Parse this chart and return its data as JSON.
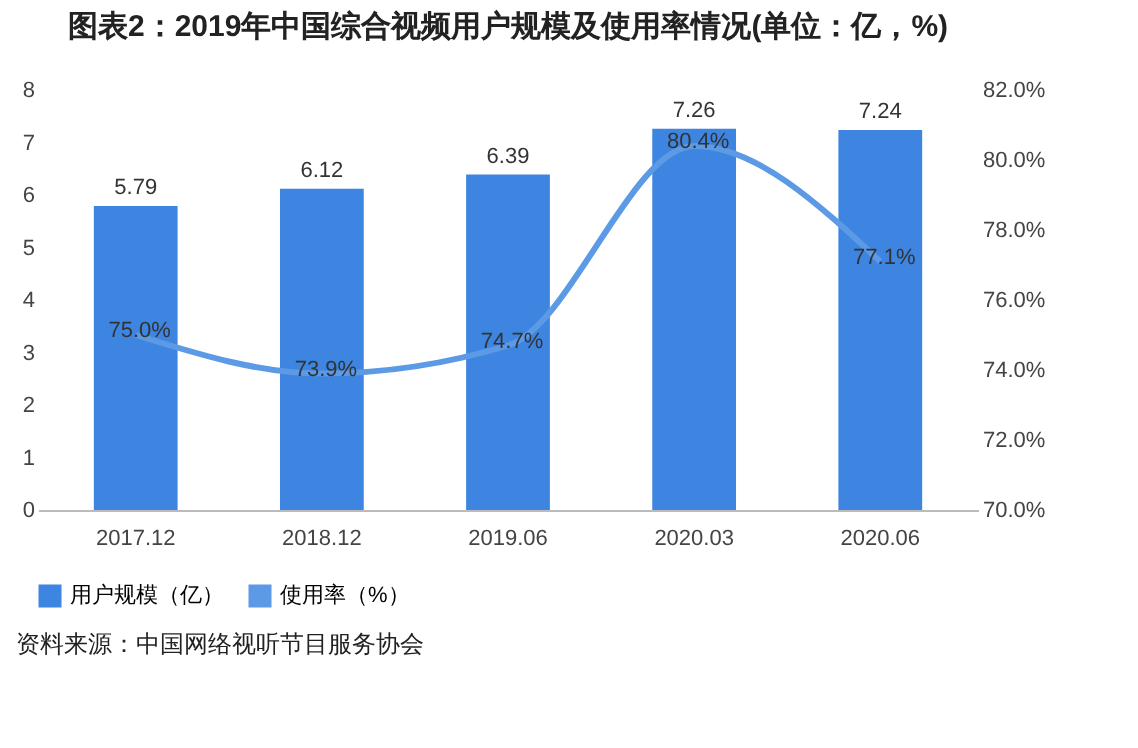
{
  "chart_data": {
    "type": "bar",
    "title": "图表2：2019年中国综合视频用户规模及使用率情况(单位：亿，%)",
    "categories": [
      "2017.12",
      "2018.12",
      "2019.06",
      "2020.03",
      "2020.06"
    ],
    "series": [
      {
        "name": "用户规模（亿）",
        "color": "#3d85e0",
        "values": [
          5.79,
          6.12,
          6.39,
          7.26,
          7.24
        ],
        "value_labels": [
          "5.79",
          "6.12",
          "6.39",
          "7.26",
          "7.24"
        ]
      },
      {
        "name": "使用率（%）",
        "type": "line",
        "axis": "y2",
        "color": "#5c9ae6",
        "values": [
          75.0,
          73.9,
          74.7,
          80.4,
          77.1
        ],
        "value_labels": [
          "75.0%",
          "73.9%",
          "74.7%",
          "80.4%",
          "77.1%"
        ]
      }
    ],
    "ylim": [
      0,
      8
    ],
    "yticks": [
      0,
      1,
      2,
      3,
      4,
      5,
      6,
      7,
      8
    ],
    "y2lim": [
      70,
      82
    ],
    "y2ticks": [
      {
        "value": 70,
        "label": "70.0%"
      },
      {
        "value": 72,
        "label": "72.0%"
      },
      {
        "value": 74,
        "label": "74.0%"
      },
      {
        "value": 76,
        "label": "76.0%"
      },
      {
        "value": 78,
        "label": "78.0%"
      },
      {
        "value": 80,
        "label": "80.0%"
      },
      {
        "value": 82,
        "label": "82.0%"
      }
    ],
    "grid": false,
    "legend": "bottom",
    "annotations": [
      "资料来源：中国网络视听节目服务协会"
    ]
  }
}
